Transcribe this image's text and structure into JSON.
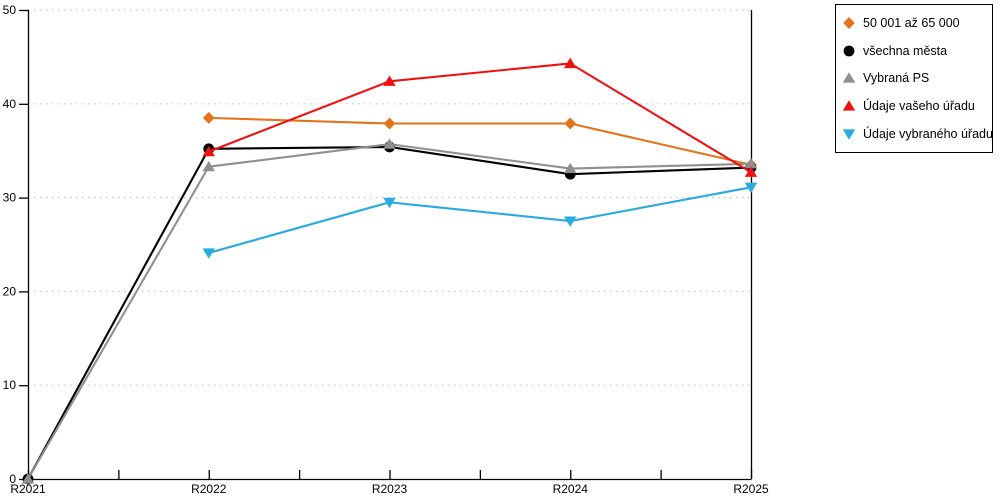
{
  "chart_data": {
    "type": "line",
    "title": "",
    "xlabel": "",
    "ylabel": "",
    "categories": [
      "R2021",
      "R2022",
      "R2023",
      "R2024",
      "R2025"
    ],
    "yticks": [
      0,
      10,
      20,
      30,
      40,
      50
    ],
    "ylim": [
      0,
      50
    ],
    "grid": "horizontal-dotted",
    "legend_position": "top-right",
    "series": [
      {
        "name": "50 001 až 65 000",
        "marker": "diamond",
        "color": "#E2751A",
        "values": [
          null,
          38.5,
          37.9,
          37.9,
          33.5
        ]
      },
      {
        "name": "všechna města",
        "marker": "circle",
        "color": "#000000",
        "values": [
          0,
          35.2,
          35.4,
          32.5,
          33.2
        ]
      },
      {
        "name": "Vybraná PS",
        "marker": "triangle-up",
        "color": "#8F8F8F",
        "values": [
          0,
          33.3,
          35.7,
          33.1,
          33.6
        ]
      },
      {
        "name": "Údaje vašeho úřadu",
        "marker": "triangle-up",
        "color": "#EE1111",
        "values": [
          null,
          34.9,
          42.4,
          44.3,
          32.7
        ]
      },
      {
        "name": "Údaje vybraného úřadu",
        "marker": "triangle-down",
        "color": "#29ABE2",
        "values": [
          null,
          24.1,
          29.5,
          27.5,
          31.1
        ]
      }
    ]
  },
  "colors": {
    "background": "#FFFFFF",
    "axis": "#000000",
    "grid": "#C6C6C6",
    "legend_border": "#000000"
  }
}
